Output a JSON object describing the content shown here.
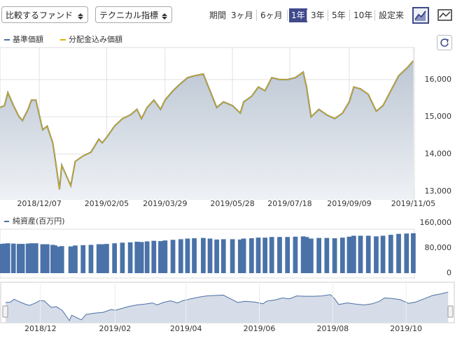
{
  "toolbar": {
    "compare": "比較するファンド",
    "technical": "テクニカル指標",
    "period_label": "期間",
    "periods": [
      "3ヶ月",
      "6ヶ月",
      "1年",
      "3年",
      "5年",
      "10年",
      "設定来"
    ],
    "selected_period": 2
  },
  "chart_data": [
    {
      "type": "line",
      "x": [
        "2018/11/02",
        "2018/11/06",
        "2018/11/09",
        "2018/11/14",
        "2018/11/19",
        "2018/11/22",
        "2018/11/27",
        "2018/11/30",
        "2018/12/04",
        "2018/12/10",
        "2018/12/14",
        "2018/12/19",
        "2018/12/21",
        "2018/12/25",
        "2018/12/27",
        "2019/01/04",
        "2019/01/08",
        "2019/01/15",
        "2019/01/22",
        "2019/01/29",
        "2019/02/01",
        "2019/02/05",
        "2019/02/12",
        "2019/02/19",
        "2019/02/26",
        "2019/03/04",
        "2019/03/08",
        "2019/03/13",
        "2019/03/19",
        "2019/03/25",
        "2019/03/29",
        "2019/04/05",
        "2019/04/12",
        "2019/04/18",
        "2019/04/24",
        "2019/05/02",
        "2019/05/08",
        "2019/05/14",
        "2019/05/20",
        "2019/05/28",
        "2019/06/04",
        "2019/06/07",
        "2019/06/14",
        "2019/06/20",
        "2019/06/26",
        "2019/07/02",
        "2019/07/09",
        "2019/07/16",
        "2019/07/23",
        "2019/07/30",
        "2019/08/02",
        "2019/08/06",
        "2019/08/13",
        "2019/08/20",
        "2019/08/27",
        "2019/09/03",
        "2019/09/09",
        "2019/09/13",
        "2019/09/19",
        "2019/09/26",
        "2019/10/03",
        "2019/10/09",
        "2019/10/16",
        "2019/10/23",
        "2019/10/30",
        "2019/11/05"
      ],
      "series": [
        {
          "name": "基準価額",
          "color": "#4a6fa5",
          "values": [
            15250,
            15300,
            15650,
            15300,
            15000,
            14900,
            15200,
            15450,
            15450,
            14650,
            14750,
            14300,
            13900,
            13050,
            13700,
            13150,
            13800,
            13950,
            14050,
            14400,
            14300,
            14450,
            14750,
            14950,
            15050,
            15200,
            14950,
            15250,
            15450,
            15200,
            15450,
            15700,
            15900,
            16050,
            16100,
            16150,
            15700,
            15250,
            15400,
            15300,
            15100,
            15400,
            15550,
            15800,
            15700,
            16050,
            16000,
            16000,
            16050,
            16200,
            15800,
            15000,
            15200,
            15050,
            14950,
            15100,
            15400,
            15800,
            15750,
            15600,
            15150,
            15300,
            15700,
            16100,
            16300,
            16500
          ]
        },
        {
          "name": "分配金込み価額",
          "color": "#e0b000",
          "values": [
            15250,
            15300,
            15650,
            15300,
            15000,
            14900,
            15200,
            15450,
            15450,
            14650,
            14750,
            14300,
            13900,
            13050,
            13700,
            13150,
            13800,
            13950,
            14050,
            14400,
            14300,
            14450,
            14750,
            14950,
            15050,
            15200,
            14950,
            15250,
            15450,
            15200,
            15450,
            15700,
            15900,
            16050,
            16100,
            16150,
            15700,
            15250,
            15400,
            15300,
            15100,
            15400,
            15550,
            15800,
            15700,
            16050,
            16000,
            16000,
            16050,
            16200,
            15800,
            15000,
            15200,
            15050,
            14950,
            15100,
            15400,
            15800,
            15750,
            15600,
            15150,
            15300,
            15700,
            16100,
            16300,
            16500
          ]
        }
      ],
      "xlim": [
        "2018/11/02",
        "2019/11/06"
      ],
      "xticks": [
        "2018/12/07",
        "2019/02/05",
        "2019/03/29",
        "2019/05/28",
        "2019/07/18",
        "2019/09/09",
        "2019/11/05"
      ],
      "ylim": [
        12790,
        16860
      ],
      "yticks": [
        {
          "value": 13000,
          "label": "13,000"
        },
        {
          "value": 14000,
          "label": "14,000"
        },
        {
          "value": 15000,
          "label": "15,000"
        },
        {
          "value": 16000,
          "label": "16,000"
        }
      ],
      "grid": true
    },
    {
      "type": "bar",
      "title": "純資産(百万円)",
      "color": "#4a72a8",
      "x": [
        "2018/11/02",
        "2018/11/06",
        "2018/11/09",
        "2018/11/14",
        "2018/11/19",
        "2018/11/22",
        "2018/11/27",
        "2018/11/30",
        "2018/12/04",
        "2018/12/10",
        "2018/12/14",
        "2018/12/19",
        "2018/12/21",
        "2018/12/25",
        "2018/12/27",
        "2019/01/04",
        "2019/01/08",
        "2019/01/15",
        "2019/01/22",
        "2019/01/29",
        "2019/02/01",
        "2019/02/05",
        "2019/02/12",
        "2019/02/19",
        "2019/02/26",
        "2019/03/04",
        "2019/03/08",
        "2019/03/13",
        "2019/03/19",
        "2019/03/25",
        "2019/03/29",
        "2019/04/05",
        "2019/04/12",
        "2019/04/18",
        "2019/04/24",
        "2019/05/02",
        "2019/05/08",
        "2019/05/14",
        "2019/05/20",
        "2019/05/28",
        "2019/06/04",
        "2019/06/07",
        "2019/06/14",
        "2019/06/20",
        "2019/06/26",
        "2019/07/02",
        "2019/07/09",
        "2019/07/16",
        "2019/07/23",
        "2019/07/30",
        "2019/08/02",
        "2019/08/06",
        "2019/08/13",
        "2019/08/20",
        "2019/08/27",
        "2019/09/03",
        "2019/09/09",
        "2019/09/13",
        "2019/09/19",
        "2019/09/26",
        "2019/10/03",
        "2019/10/09",
        "2019/10/16",
        "2019/10/23",
        "2019/10/30",
        "2019/11/05"
      ],
      "values": [
        93000,
        94000,
        95000,
        94000,
        93000,
        93000,
        94000,
        95000,
        95000,
        92000,
        92000,
        90000,
        88000,
        84000,
        86000,
        85000,
        88000,
        89000,
        90000,
        92000,
        92000,
        93000,
        95000,
        97000,
        98000,
        100000,
        99000,
        101000,
        103000,
        102000,
        104000,
        106000,
        108000,
        110000,
        111000,
        112000,
        110000,
        107000,
        108000,
        108000,
        107000,
        110000,
        111000,
        113000,
        113000,
        115000,
        115000,
        115000,
        116000,
        117000,
        115000,
        110000,
        112000,
        112000,
        111000,
        113000,
        116000,
        119000,
        119000,
        119000,
        117000,
        119000,
        122000,
        125000,
        126000,
        127000
      ],
      "ylim": [
        0,
        180000
      ],
      "yticks": [
        0,
        {
          "value": 80000,
          "label": "80,000"
        },
        {
          "value": 160000,
          "label": "160,000"
        }
      ]
    },
    {
      "type": "navigator",
      "xticks": [
        "2018/12",
        "2019/02",
        "2019/04",
        "2019/06",
        "2019/08",
        "2019/10"
      ]
    }
  ]
}
